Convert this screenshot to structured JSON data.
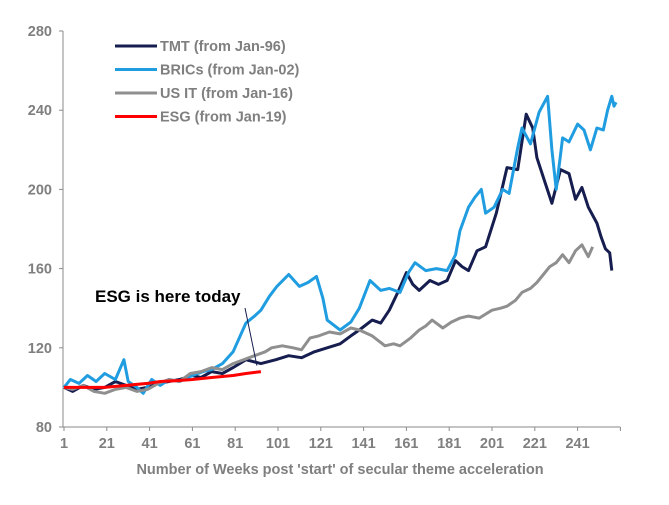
{
  "chart_data": {
    "type": "line",
    "title": "",
    "xlabel": "Number of Weeks post 'start' of secular theme acceleration",
    "ylabel": "",
    "xlim": [
      1,
      261
    ],
    "ylim": [
      80,
      280
    ],
    "x_ticks": [
      1,
      21,
      41,
      61,
      81,
      101,
      121,
      141,
      161,
      181,
      201,
      221,
      241
    ],
    "y_ticks": [
      80,
      120,
      160,
      200,
      240,
      280
    ],
    "grid": false,
    "legend_placement": "top-left",
    "annotation": {
      "text": "ESG is here today",
      "points_to": [
        93,
        108
      ]
    },
    "series": [
      {
        "name": "TMT (from Jan-96)",
        "color": "#161d4f",
        "points": [
          [
            1,
            100
          ],
          [
            5,
            98
          ],
          [
            10,
            101
          ],
          [
            15,
            99
          ],
          [
            20,
            100
          ],
          [
            25,
            103
          ],
          [
            30,
            101
          ],
          [
            35,
            99
          ],
          [
            40,
            100
          ],
          [
            45,
            102
          ],
          [
            50,
            103
          ],
          [
            55,
            104
          ],
          [
            61,
            106
          ],
          [
            65,
            105
          ],
          [
            70,
            108
          ],
          [
            75,
            107
          ],
          [
            80,
            110
          ],
          [
            86,
            114
          ],
          [
            93,
            112
          ],
          [
            100,
            114
          ],
          [
            106,
            116
          ],
          [
            112,
            115
          ],
          [
            118,
            118
          ],
          [
            124,
            120
          ],
          [
            130,
            122
          ],
          [
            135,
            126
          ],
          [
            139,
            129
          ],
          [
            145,
            134
          ],
          [
            149,
            132.5
          ],
          [
            153,
            139
          ],
          [
            157,
            148
          ],
          [
            161,
            158
          ],
          [
            164,
            152
          ],
          [
            167,
            149
          ],
          [
            172,
            154
          ],
          [
            176,
            152
          ],
          [
            180,
            154
          ],
          [
            184,
            164
          ],
          [
            187,
            161
          ],
          [
            190,
            159
          ],
          [
            194,
            169
          ],
          [
            198,
            171
          ],
          [
            203,
            188
          ],
          [
            208,
            211
          ],
          [
            213,
            210
          ],
          [
            217,
            238
          ],
          [
            220,
            231
          ],
          [
            222,
            216
          ],
          [
            225,
            206
          ],
          [
            229,
            193
          ],
          [
            233,
            210
          ],
          [
            237,
            208
          ],
          [
            240,
            195
          ],
          [
            243,
            201
          ],
          [
            246,
            191
          ],
          [
            250,
            183
          ],
          [
            252,
            176
          ],
          [
            254,
            170
          ],
          [
            256,
            168
          ],
          [
            257,
            159
          ]
        ]
      },
      {
        "name": "BRICs (from Jan-02)",
        "color": "#1f9de0",
        "points": [
          [
            1,
            100
          ],
          [
            4,
            104
          ],
          [
            8,
            102
          ],
          [
            12,
            106
          ],
          [
            16,
            103
          ],
          [
            20,
            107
          ],
          [
            25,
            104
          ],
          [
            29,
            114
          ],
          [
            31,
            103
          ],
          [
            35,
            100
          ],
          [
            38,
            97
          ],
          [
            42,
            104
          ],
          [
            46,
            101
          ],
          [
            50,
            104
          ],
          [
            55,
            103
          ],
          [
            61,
            106
          ],
          [
            66,
            108
          ],
          [
            70,
            109
          ],
          [
            75,
            112
          ],
          [
            80,
            118
          ],
          [
            86,
            132.5
          ],
          [
            90,
            136
          ],
          [
            93,
            139
          ],
          [
            97,
            146
          ],
          [
            100.5,
            151
          ],
          [
            106,
            157
          ],
          [
            111,
            151
          ],
          [
            115,
            153
          ],
          [
            119,
            156
          ],
          [
            122,
            145
          ],
          [
            124,
            134
          ],
          [
            130,
            129
          ],
          [
            135,
            133
          ],
          [
            139,
            140
          ],
          [
            144,
            154
          ],
          [
            149,
            149
          ],
          [
            153,
            150
          ],
          [
            158,
            148
          ],
          [
            162,
            158
          ],
          [
            165,
            163
          ],
          [
            170,
            159
          ],
          [
            175,
            160
          ],
          [
            180,
            159
          ],
          [
            184,
            167
          ],
          [
            186,
            179
          ],
          [
            190,
            191
          ],
          [
            193,
            196
          ],
          [
            196,
            200
          ],
          [
            198,
            188
          ],
          [
            202,
            191
          ],
          [
            206,
            200
          ],
          [
            209,
            198
          ],
          [
            213,
            221
          ],
          [
            215,
            231
          ],
          [
            219,
            223
          ],
          [
            223,
            239
          ],
          [
            227,
            247
          ],
          [
            229,
            220
          ],
          [
            231,
            200
          ],
          [
            234,
            226
          ],
          [
            237,
            224
          ],
          [
            241,
            233
          ],
          [
            244,
            230
          ],
          [
            247,
            220
          ],
          [
            250,
            231
          ],
          [
            253,
            230
          ],
          [
            255,
            240
          ],
          [
            257,
            247
          ],
          [
            258,
            242
          ],
          [
            259,
            244
          ]
        ]
      },
      {
        "name": "US IT (from Jan-16)",
        "color": "#8f8f8f",
        "points": [
          [
            1,
            100
          ],
          [
            5,
            99
          ],
          [
            10,
            101
          ],
          [
            15,
            98
          ],
          [
            20,
            97
          ],
          [
            25,
            99
          ],
          [
            30,
            100
          ],
          [
            35,
            98
          ],
          [
            40,
            99
          ],
          [
            45,
            102
          ],
          [
            50,
            104
          ],
          [
            55,
            103
          ],
          [
            60,
            107
          ],
          [
            65,
            108
          ],
          [
            70,
            110
          ],
          [
            75,
            109
          ],
          [
            80,
            112
          ],
          [
            85,
            114
          ],
          [
            90,
            116
          ],
          [
            95,
            118
          ],
          [
            98,
            120
          ],
          [
            103,
            121
          ],
          [
            108,
            120
          ],
          [
            112,
            119
          ],
          [
            116,
            125
          ],
          [
            120,
            126
          ],
          [
            125,
            128
          ],
          [
            130,
            127
          ],
          [
            135,
            130
          ],
          [
            139,
            129
          ],
          [
            145,
            126
          ],
          [
            151,
            121
          ],
          [
            155,
            122
          ],
          [
            158,
            121
          ],
          [
            163,
            125
          ],
          [
            167,
            129
          ],
          [
            170,
            131
          ],
          [
            173,
            134
          ],
          [
            178,
            130
          ],
          [
            182,
            133
          ],
          [
            186,
            135
          ],
          [
            190,
            136
          ],
          [
            195,
            135
          ],
          [
            198,
            137
          ],
          [
            201,
            139
          ],
          [
            205,
            140
          ],
          [
            208,
            141
          ],
          [
            212,
            144
          ],
          [
            215,
            148
          ],
          [
            219,
            150
          ],
          [
            222,
            153
          ],
          [
            225,
            157
          ],
          [
            228,
            161
          ],
          [
            231,
            163
          ],
          [
            234,
            167
          ],
          [
            237,
            163
          ],
          [
            240,
            169
          ],
          [
            243,
            172
          ],
          [
            245,
            168
          ],
          [
            246,
            166
          ],
          [
            248,
            171
          ]
        ]
      },
      {
        "name": "ESG (from Jan-19)",
        "color": "#ff0000",
        "points": [
          [
            1,
            100
          ],
          [
            10,
            100
          ],
          [
            20,
            100
          ],
          [
            30,
            101
          ],
          [
            40,
            102
          ],
          [
            46,
            103
          ],
          [
            55,
            103.5
          ],
          [
            61,
            104
          ],
          [
            70,
            105
          ],
          [
            80,
            106
          ],
          [
            86,
            107
          ],
          [
            93,
            108
          ]
        ]
      }
    ]
  }
}
